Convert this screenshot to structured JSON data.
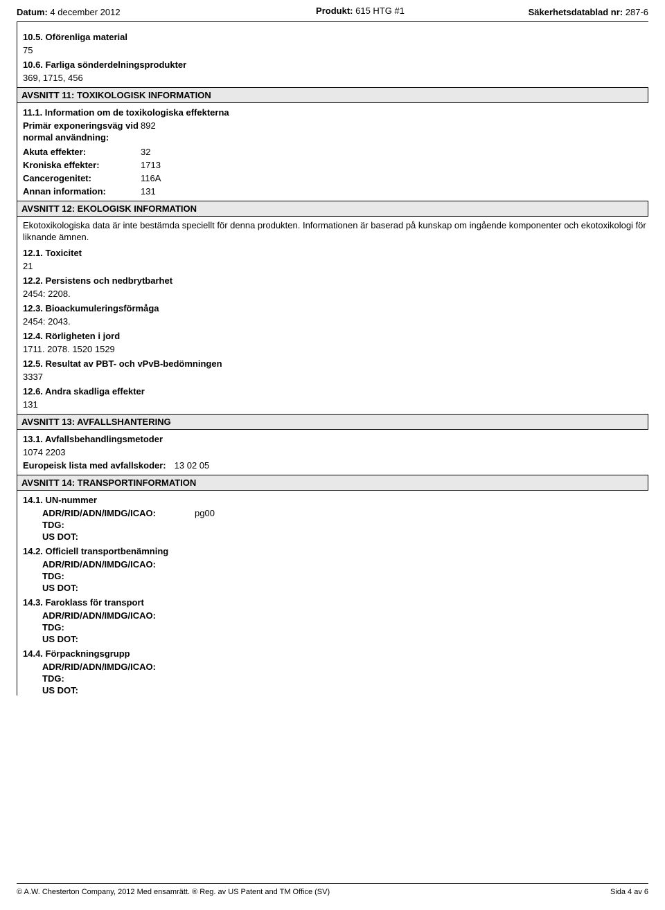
{
  "header": {
    "date_label": "Datum:",
    "date_value": "4 december 2012",
    "product_label": "Produkt:",
    "product_value": "615 HTG #1",
    "sds_label": "Säkerhetsdatablad nr:",
    "sds_value": "287-6"
  },
  "section_10_5": {
    "title": "10.5. Oförenliga material",
    "value": "75"
  },
  "section_10_6": {
    "title": "10.6. Farliga sönderdelningsprodukter",
    "value": "369, 1715, 456"
  },
  "section_11_header": "AVSNITT 11: TOXIKOLOGISK INFORMATION",
  "section_11_1": {
    "title": "11.1. Information om de toxikologiska effekterna",
    "rows": [
      {
        "label": "Primär exponeringsväg vid normal användning:",
        "value": "892"
      },
      {
        "label": "Akuta effekter:",
        "value": "32"
      },
      {
        "label": "Kroniska effekter:",
        "value": "1713"
      },
      {
        "label": "Cancerogenitet:",
        "value": "116A"
      },
      {
        "label": "Annan information:",
        "value": "131"
      }
    ]
  },
  "section_12_header": "AVSNITT 12: EKOLOGISK INFORMATION",
  "section_12_intro": "Ekotoxikologiska data är inte bestämda speciellt för denna produkten. Informationen är baserad på kunskap om ingående komponenter och ekotoxikologi för liknande ämnen.",
  "section_12_1": {
    "title": "12.1. Toxicitet",
    "value": "21"
  },
  "section_12_2": {
    "title": "12.2. Persistens och nedbrytbarhet",
    "value": "2454: 2208."
  },
  "section_12_3": {
    "title": "12.3. Bioackumuleringsförmåga",
    "value": "2454: 2043."
  },
  "section_12_4": {
    "title": "12.4. Rörligheten i jord",
    "value": "1711. 2078. 1520 1529"
  },
  "section_12_5": {
    "title": "12.5. Resultat av PBT- och vPvB-bedömningen",
    "value": "3337"
  },
  "section_12_6": {
    "title": "12.6. Andra skadliga effekter",
    "value": "131"
  },
  "section_13_header": "AVSNITT 13: AVFALLSHANTERING",
  "section_13_1": {
    "title": "13.1. Avfallsbehandlingsmetoder",
    "value": "1074 2203"
  },
  "section_13_euro": {
    "label": "Europeisk lista med avfallskoder:",
    "value": "13 02 05"
  },
  "section_14_header": "AVSNITT 14: TRANSPORTINFORMATION",
  "section_14_items": [
    {
      "title": "14.1. UN-nummer",
      "rows": [
        {
          "label": "ADR/RID/ADN/IMDG/ICAO:",
          "value": "pg00"
        },
        {
          "label": "TDG:",
          "value": ""
        },
        {
          "label": "US DOT:",
          "value": ""
        }
      ]
    },
    {
      "title": "14.2. Officiell transportbenämning",
      "rows": [
        {
          "label": "ADR/RID/ADN/IMDG/ICAO:",
          "value": ""
        },
        {
          "label": "TDG:",
          "value": ""
        },
        {
          "label": "US DOT:",
          "value": ""
        }
      ]
    },
    {
      "title": "14.3. Faroklass för transport",
      "rows": [
        {
          "label": "ADR/RID/ADN/IMDG/ICAO:",
          "value": ""
        },
        {
          "label": "TDG:",
          "value": ""
        },
        {
          "label": "US DOT:",
          "value": ""
        }
      ]
    },
    {
      "title": "14.4. Förpackningsgrupp",
      "rows": [
        {
          "label": "ADR/RID/ADN/IMDG/ICAO:",
          "value": ""
        },
        {
          "label": "TDG:",
          "value": ""
        },
        {
          "label": "US DOT:",
          "value": ""
        }
      ]
    }
  ],
  "footer": {
    "left": "© A.W. Chesterton Company, 2012 Med ensamrätt.    ® Reg. av US Patent and TM Office (SV)",
    "right": "Sida 4 av  6"
  }
}
